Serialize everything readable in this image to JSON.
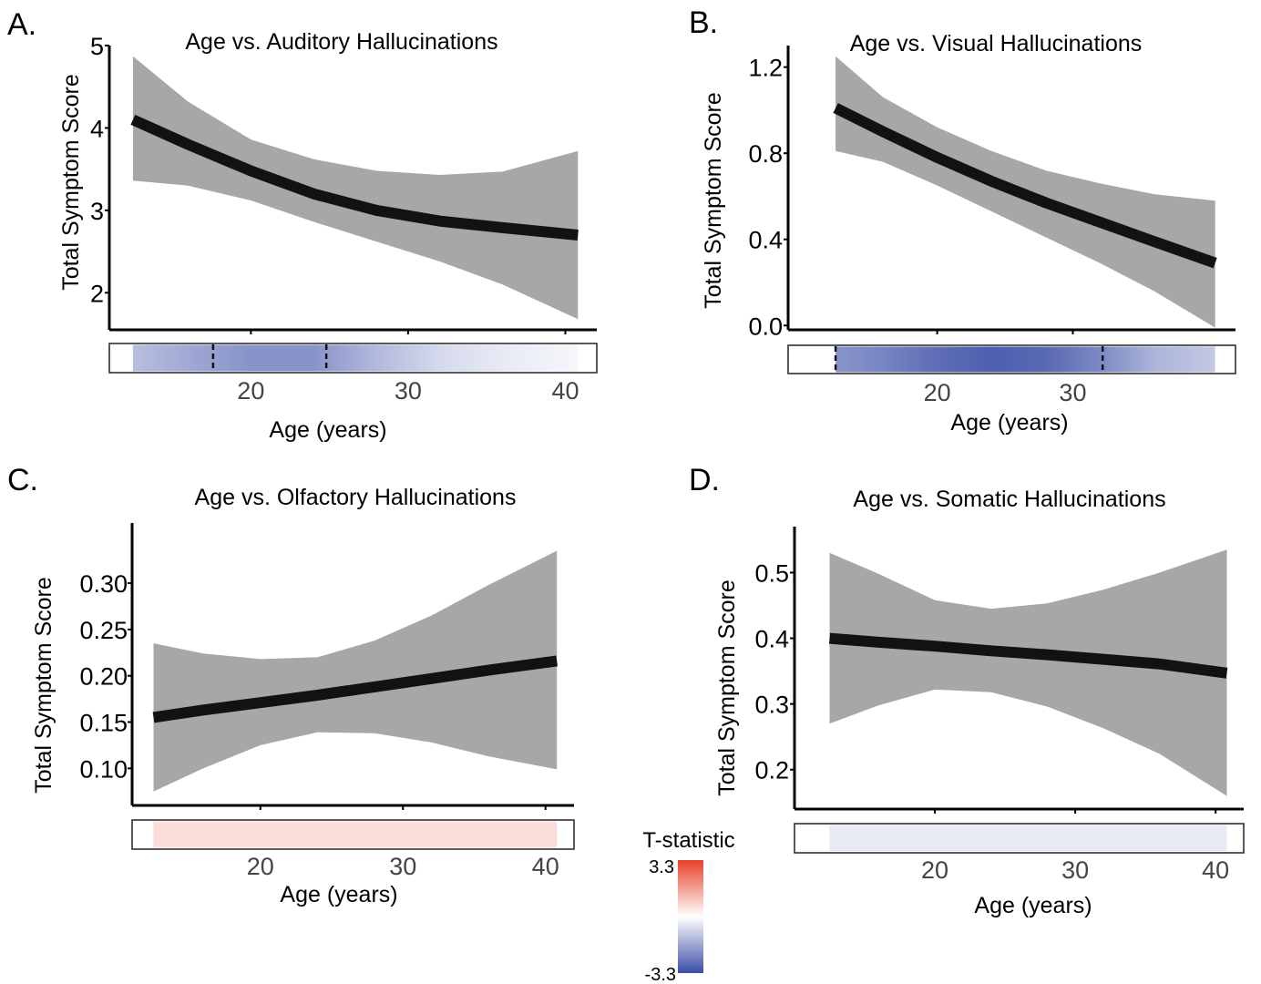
{
  "chart_data": [
    {
      "panel": "A.",
      "type": "line",
      "title": "Age vs. Auditory Hallucinations",
      "xlabel": "Age (years)",
      "ylabel": "Total Symptom Score",
      "xlim": [
        11,
        42
      ],
      "ylim": [
        1.55,
        5.0
      ],
      "xticks": [
        "20",
        "30",
        "40"
      ],
      "yticks": [
        "2",
        "3",
        "4",
        "5"
      ],
      "x": [
        12.5,
        16,
        20,
        24,
        28,
        32,
        36,
        40.8
      ],
      "y": [
        4.1,
        3.8,
        3.48,
        3.2,
        3.0,
        2.87,
        2.79,
        2.7
      ],
      "lower": [
        3.36,
        3.3,
        3.12,
        2.86,
        2.62,
        2.38,
        2.1,
        1.68
      ],
      "upper": [
        4.87,
        4.32,
        3.86,
        3.62,
        3.48,
        3.43,
        3.47,
        3.72
      ],
      "age_strip": {
        "x": [
          12.5,
          16,
          20,
          24,
          28,
          32,
          36,
          40.8
        ],
        "t": [
          -1.2,
          -1.6,
          -2.0,
          -2.0,
          -1.3,
          -0.7,
          -0.4,
          -0.15
        ],
        "significant_range": [
          17.6,
          24.8
        ]
      }
    },
    {
      "panel": "B.",
      "type": "line",
      "title": "Age vs. Visual Hallucinations",
      "xlabel": "Age (years)",
      "ylabel": "Total Symptom Score",
      "xlim": [
        9,
        42
      ],
      "ylim": [
        -0.02,
        1.3
      ],
      "xticks": [
        "20",
        "30"
      ],
      "yticks": [
        "0.0",
        "0.4",
        "0.8",
        "1.2"
      ],
      "x": [
        12.5,
        16,
        20,
        24,
        28,
        32,
        36,
        40.5
      ],
      "y": [
        1.01,
        0.9,
        0.78,
        0.67,
        0.57,
        0.48,
        0.39,
        0.29
      ],
      "lower": [
        0.81,
        0.76,
        0.65,
        0.53,
        0.41,
        0.29,
        0.16,
        -0.01
      ],
      "upper": [
        1.25,
        1.06,
        0.92,
        0.81,
        0.72,
        0.66,
        0.61,
        0.58
      ],
      "age_strip": {
        "x": [
          12.5,
          16,
          20,
          24,
          28,
          32,
          36,
          40.5
        ],
        "t": [
          -2.0,
          -2.3,
          -2.7,
          -3.0,
          -2.8,
          -2.2,
          -1.4,
          -1.0
        ],
        "significant_range": [
          12.5,
          32.2
        ]
      }
    },
    {
      "panel": "C.",
      "type": "line",
      "title": "Age vs. Olfactory Hallucinations",
      "xlabel": "Age (years)",
      "ylabel": "Total Symptom Score",
      "xlim": [
        11,
        42
      ],
      "ylim": [
        0.06,
        0.365
      ],
      "xticks": [
        "20",
        "30",
        "40"
      ],
      "yticks": [
        "0.10",
        "0.15",
        "0.20",
        "0.25",
        "0.30"
      ],
      "x": [
        12.5,
        16,
        20,
        24,
        28,
        32,
        36,
        40.8
      ],
      "y": [
        0.155,
        0.163,
        0.171,
        0.179,
        0.188,
        0.197,
        0.206,
        0.216
      ],
      "lower": [
        0.075,
        0.1,
        0.125,
        0.139,
        0.138,
        0.128,
        0.113,
        0.099
      ],
      "upper": [
        0.235,
        0.224,
        0.218,
        0.22,
        0.238,
        0.265,
        0.298,
        0.335
      ],
      "age_strip": {
        "x": [
          12.5,
          40.8
        ],
        "t": [
          0.6,
          0.6
        ],
        "significant_range": []
      }
    },
    {
      "panel": "D.",
      "type": "line",
      "title": "Age vs. Somatic Hallucinations",
      "xlabel": "Age (years)",
      "ylabel": "Total Symptom Score",
      "xlim": [
        10,
        42
      ],
      "ylim": [
        0.14,
        0.57
      ],
      "xticks": [
        "20",
        "30",
        "40"
      ],
      "yticks": [
        "0.2",
        "0.3",
        "0.4",
        "0.5"
      ],
      "x": [
        12.5,
        16,
        20,
        24,
        28,
        32,
        36,
        40.8
      ],
      "y": [
        0.4,
        0.394,
        0.388,
        0.381,
        0.375,
        0.368,
        0.361,
        0.347
      ],
      "lower": [
        0.27,
        0.298,
        0.322,
        0.318,
        0.296,
        0.263,
        0.224,
        0.16
      ],
      "upper": [
        0.53,
        0.498,
        0.458,
        0.445,
        0.453,
        0.474,
        0.5,
        0.535
      ],
      "age_strip": {
        "x": [
          12.5,
          40.8
        ],
        "t": [
          -0.4,
          -0.4
        ],
        "significant_range": []
      }
    }
  ],
  "colorbar": {
    "label": "T-statistic",
    "max_label": "3.3",
    "min_label": "-3.3",
    "range": [
      -3.3,
      3.3
    ],
    "colors": {
      "high": "#e8402a",
      "mid": "#ffffff",
      "low": "#3b4ea6"
    }
  },
  "style": {
    "line_color": "#121212",
    "ribbon_color": "#a9a6a6"
  }
}
